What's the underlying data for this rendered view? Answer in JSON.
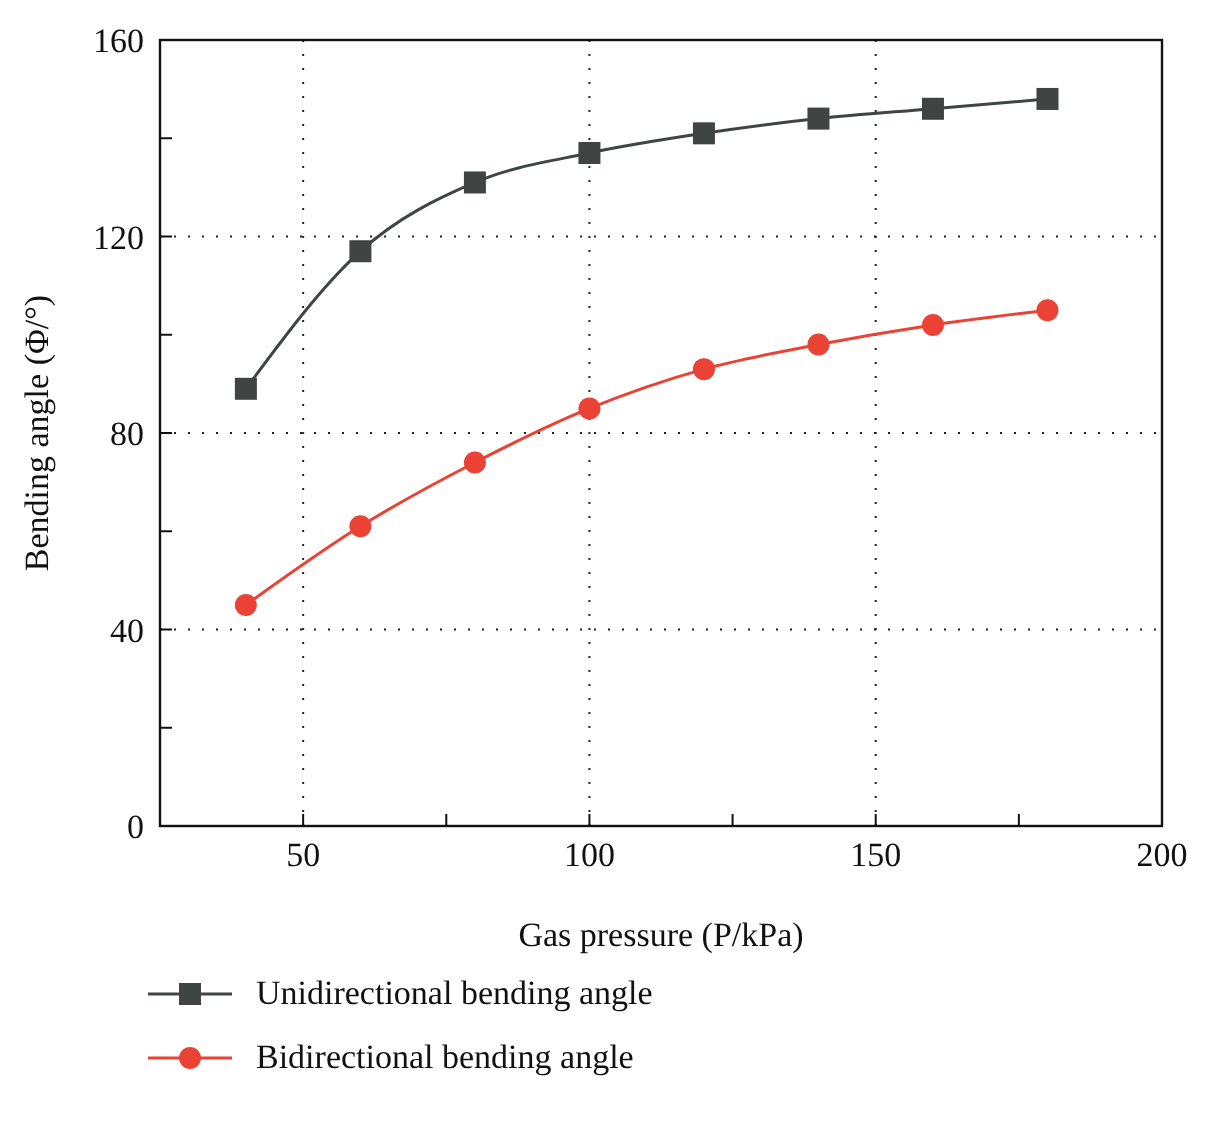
{
  "chart_data": {
    "type": "line",
    "xlabel": "Gas pressure (P/kPa)",
    "ylabel": "Bending angle (Φ/°)",
    "x": [
      40,
      60,
      80,
      100,
      120,
      140,
      160,
      180
    ],
    "series": [
      {
        "name": "Unidirectional bending angle",
        "color": "#404443",
        "marker": "square",
        "values": [
          89,
          117,
          131,
          137,
          141,
          144,
          146,
          148
        ]
      },
      {
        "name": "Bidirectional bending angle",
        "color": "#ea4336",
        "marker": "circle",
        "values": [
          45,
          61,
          74,
          85,
          93,
          98,
          102,
          105
        ]
      }
    ],
    "xlim": [
      25,
      200
    ],
    "xticks": [
      50,
      {
        "value": 75,
        "label": null
      },
      100,
      {
        "value": 125,
        "label": null
      },
      150,
      {
        "value": 175,
        "label": null
      },
      200
    ],
    "ylim": [
      0,
      160
    ],
    "yticks": [
      0,
      {
        "value": 20,
        "label": null
      },
      40,
      {
        "value": 60,
        "label": null
      },
      80,
      {
        "value": 100,
        "label": null
      },
      120,
      {
        "value": 140,
        "label": null
      },
      160
    ],
    "grid": true,
    "legend": "bottom",
    "line_style": "solid"
  }
}
